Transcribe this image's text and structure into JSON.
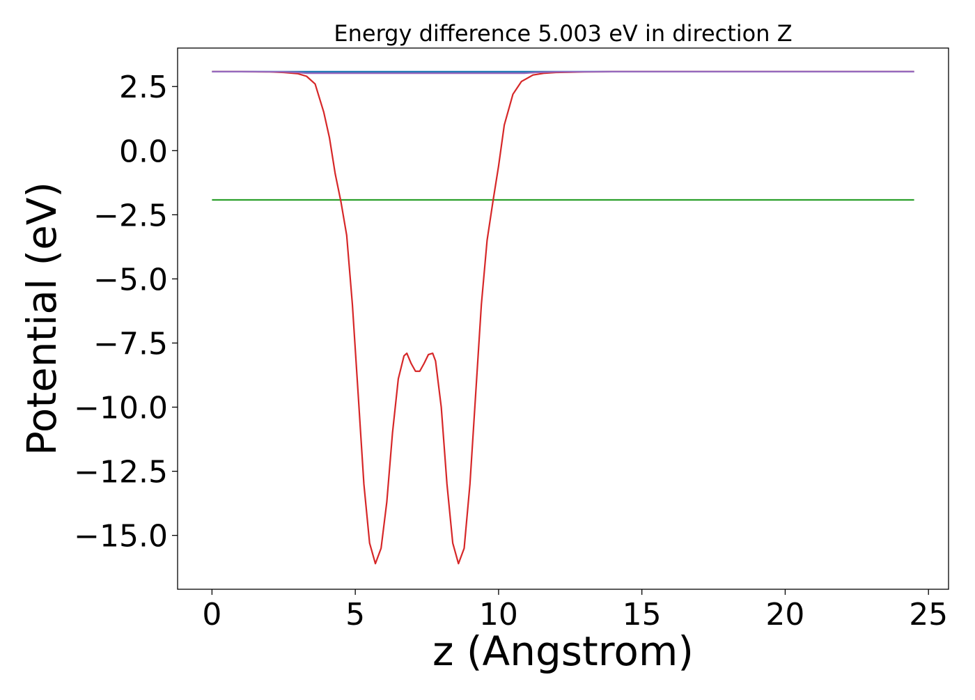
{
  "chart_data": {
    "type": "line",
    "title": "Energy difference 5.003 eV in direction Z",
    "xlabel": "z (Angstrom)",
    "ylabel": "Potential (eV)",
    "xlim": [
      -1.2,
      25.7
    ],
    "ylim": [
      -17.1,
      4.0
    ],
    "x_ticks": [
      0,
      5,
      10,
      15,
      20,
      25
    ],
    "x_tick_labels": [
      "0",
      "5",
      "10",
      "15",
      "20",
      "25"
    ],
    "y_ticks": [
      2.5,
      0.0,
      -2.5,
      -5.0,
      -7.5,
      -10.0,
      -12.5,
      -15.0
    ],
    "y_tick_labels": [
      "2.5",
      "0.0",
      "−2.5",
      "−5.0",
      "−7.5",
      "−10.0",
      "−12.5",
      "−15.0"
    ],
    "grid": false,
    "series": [
      {
        "color": "#1f77b4",
        "x": [
          0,
          24.5
        ],
        "y": [
          3.08,
          3.08
        ]
      },
      {
        "color": "#2ca02c",
        "x": [
          0,
          24.5
        ],
        "y": [
          -1.92,
          -1.92
        ]
      },
      {
        "color": "#d62728",
        "x": [
          0,
          1.0,
          2.0,
          2.5,
          3.0,
          3.3,
          3.6,
          3.9,
          4.1,
          4.3,
          4.5,
          4.7,
          4.9,
          5.1,
          5.3,
          5.5,
          5.7,
          5.9,
          6.1,
          6.3,
          6.5,
          6.7,
          6.8,
          6.95,
          7.1,
          7.25,
          7.4,
          7.55,
          7.7,
          7.8,
          8.0,
          8.2,
          8.4,
          8.6,
          8.8,
          9.0,
          9.2,
          9.4,
          9.6,
          9.8,
          10.0,
          10.2,
          10.5,
          10.8,
          11.2,
          11.6,
          12.0,
          12.5,
          13.0,
          14.0,
          16.0,
          20.0,
          24.5
        ],
        "y": [
          3.08,
          3.08,
          3.07,
          3.05,
          3.0,
          2.9,
          2.6,
          1.5,
          0.5,
          -0.9,
          -2.0,
          -3.3,
          -6.0,
          -9.5,
          -13.0,
          -15.3,
          -16.1,
          -15.5,
          -13.7,
          -11.0,
          -8.9,
          -8.0,
          -7.9,
          -8.3,
          -8.6,
          -8.6,
          -8.3,
          -7.95,
          -7.9,
          -8.2,
          -10.0,
          -13.0,
          -15.3,
          -16.1,
          -15.5,
          -13.0,
          -9.5,
          -6.0,
          -3.5,
          -2.0,
          -0.6,
          1.0,
          2.2,
          2.7,
          2.95,
          3.02,
          3.05,
          3.06,
          3.07,
          3.08,
          3.08,
          3.08,
          3.08
        ]
      },
      {
        "color": "#9467bd",
        "x": [
          0,
          1.5,
          2.5,
          3.0,
          3.3,
          10.9,
          11.3,
          12.0,
          14.0,
          24.5
        ],
        "y": [
          3.08,
          3.08,
          3.07,
          3.05,
          3.02,
          3.02,
          3.05,
          3.07,
          3.08,
          3.08
        ]
      }
    ]
  }
}
